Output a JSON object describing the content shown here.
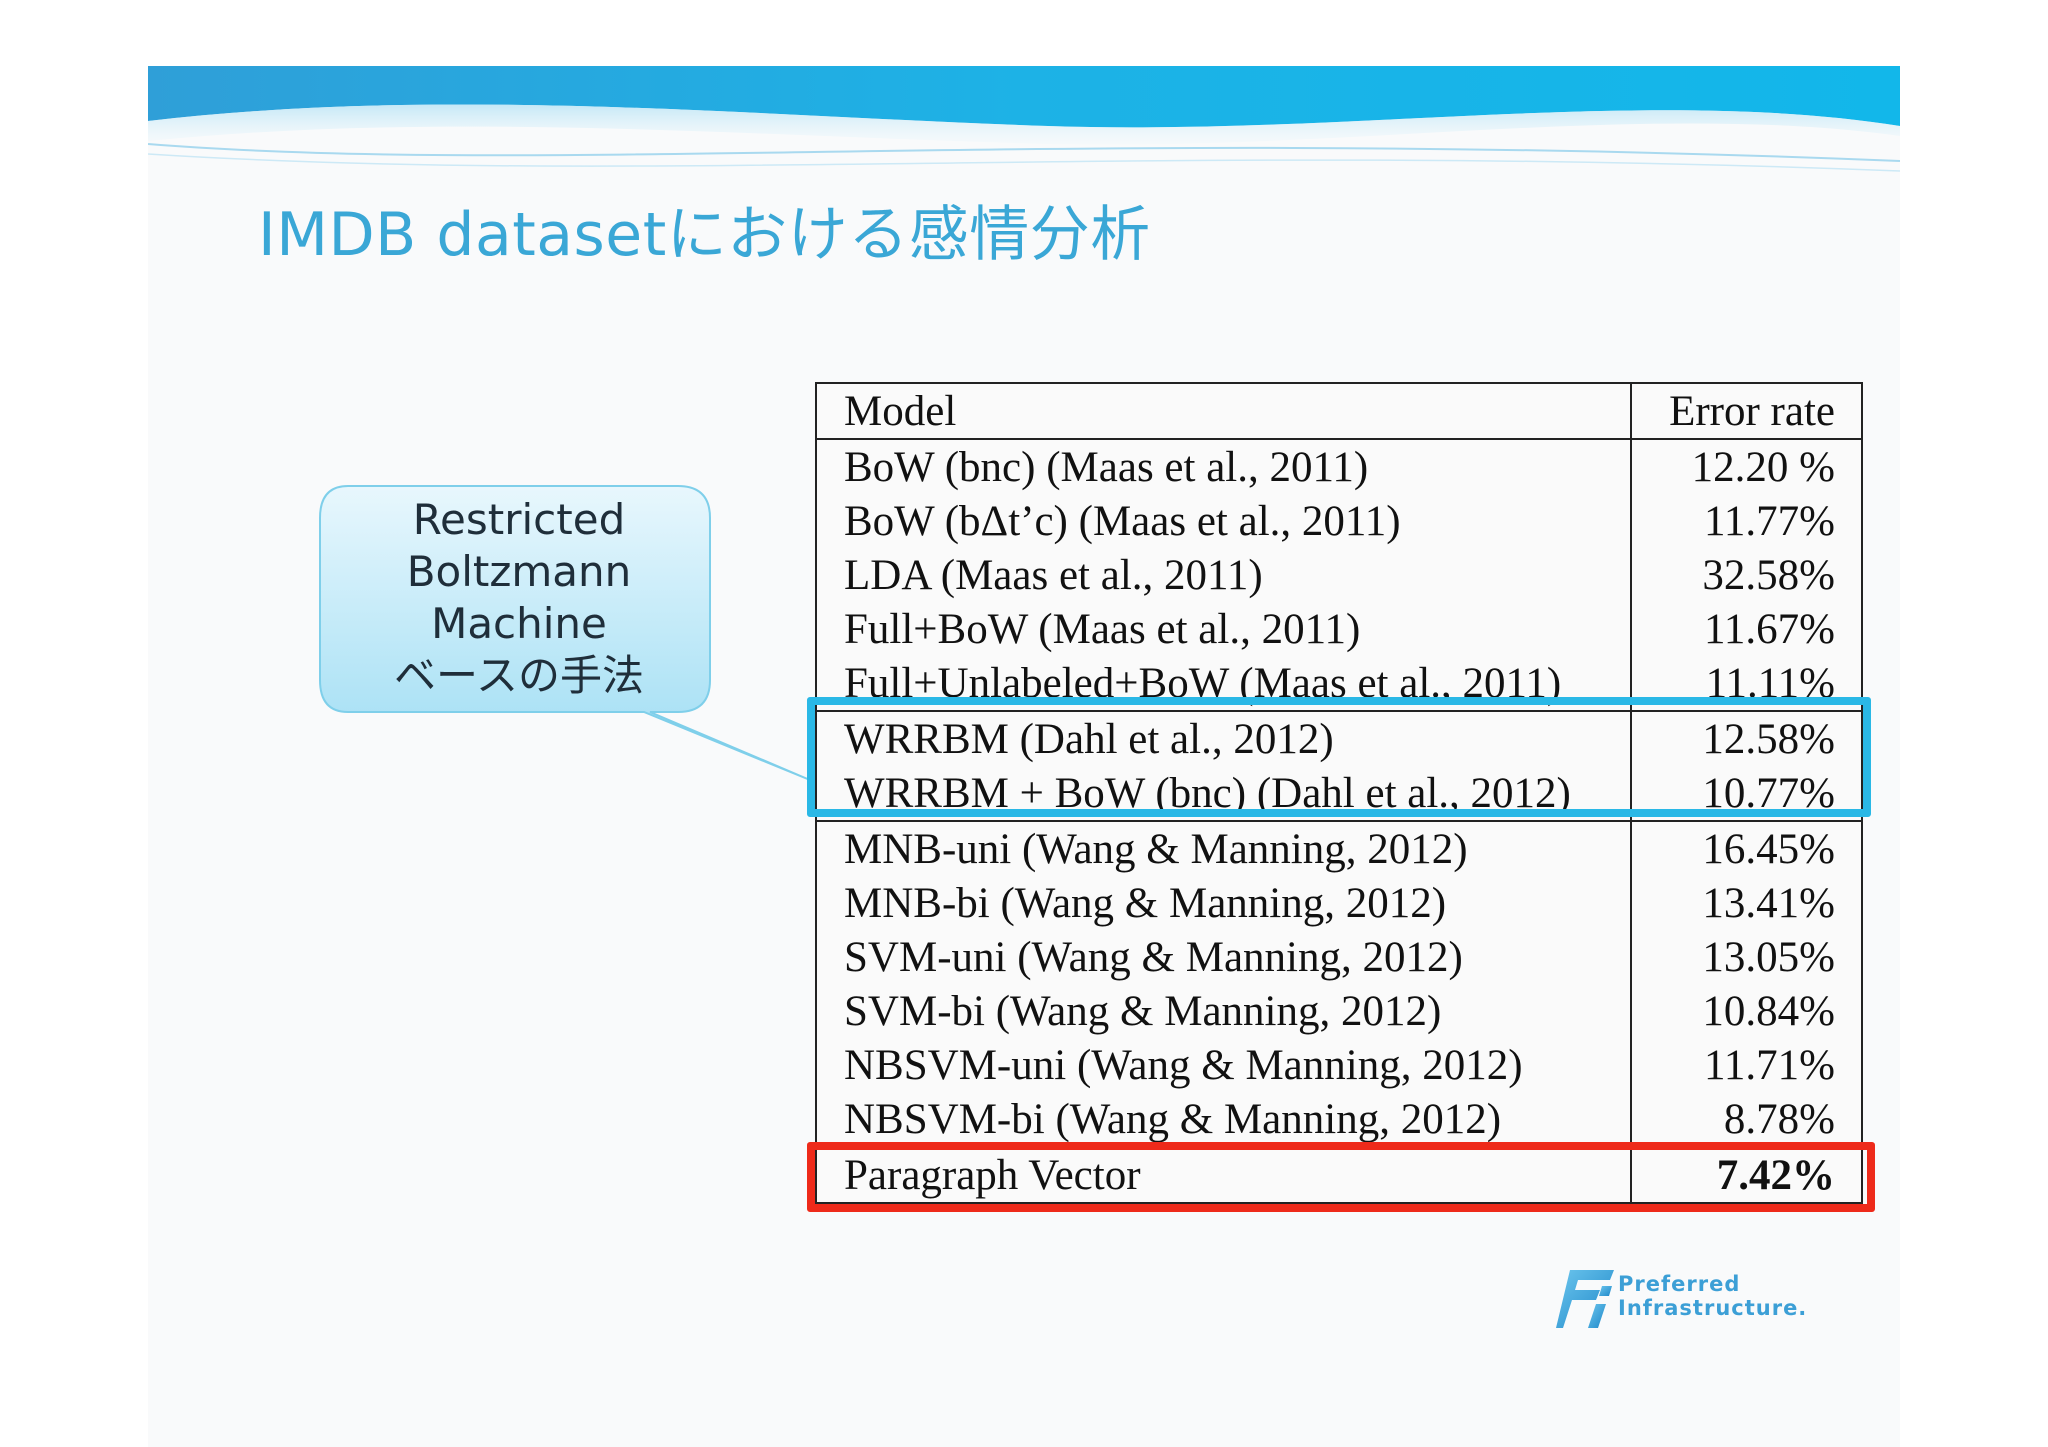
{
  "slide": {
    "title": "IMDB datasetにおける感情分析"
  },
  "callout": {
    "lines": [
      "Restricted",
      "Boltzmann",
      "Machine",
      "ベースの手法"
    ]
  },
  "table": {
    "headers": {
      "model": "Model",
      "error": "Error rate"
    },
    "rows": [
      {
        "model": "BoW (bnc) (Maas et al., 2011)",
        "error": "12.20 %"
      },
      {
        "model": "BoW (bΔt’c) (Maas et al., 2011)",
        "error": "11.77%"
      },
      {
        "model": "LDA (Maas et al., 2011)",
        "error": "32.58%"
      },
      {
        "model": "Full+BoW (Maas et al., 2011)",
        "error": "11.67%"
      },
      {
        "model": "Full+Unlabeled+BoW (Maas et al., 2011)",
        "error": "11.11%"
      },
      {
        "model": "WRRBM (Dahl et al., 2012)",
        "error": "12.58%"
      },
      {
        "model": "WRRBM + BoW (bnc) (Dahl et al., 2012)",
        "error": "10.77%"
      },
      {
        "model": "MNB-uni (Wang & Manning, 2012)",
        "error": "16.45%"
      },
      {
        "model": "MNB-bi (Wang & Manning, 2012)",
        "error": "13.41%"
      },
      {
        "model": "SVM-uni (Wang & Manning, 2012)",
        "error": "13.05%"
      },
      {
        "model": "SVM-bi (Wang & Manning, 2012)",
        "error": "10.84%"
      },
      {
        "model": "NBSVM-uni (Wang & Manning, 2012)",
        "error": "11.71%"
      },
      {
        "model": "NBSVM-bi (Wang & Manning, 2012)",
        "error": "8.78%"
      },
      {
        "model": "Paragraph Vector",
        "error": "7.42%"
      }
    ]
  },
  "logo": {
    "line1": "Preferred",
    "line2": "Infrastructure."
  },
  "colors": {
    "title": "#3aa7d6",
    "highlight_blue": "#2ab8e6",
    "highlight_red": "#ee2a1a",
    "banner": "#1fa7df"
  }
}
